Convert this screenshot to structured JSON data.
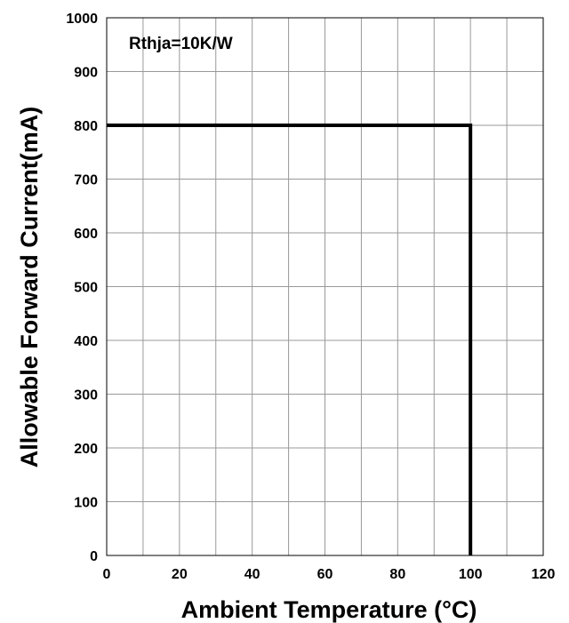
{
  "chart_data": {
    "type": "line",
    "title": "",
    "xlabel": "Ambient Temperature (°C)",
    "ylabel": "Allowable Forward Current(mA)",
    "xlim": [
      0,
      120
    ],
    "ylim": [
      0,
      1000
    ],
    "x_ticks": [
      0,
      10,
      20,
      30,
      40,
      50,
      60,
      70,
      80,
      90,
      100,
      110,
      120
    ],
    "x_tick_labels": [
      "0",
      "",
      "20",
      "",
      "40",
      "",
      "60",
      "",
      "80",
      "",
      "100",
      "",
      "120"
    ],
    "y_ticks": [
      0,
      100,
      200,
      300,
      400,
      500,
      600,
      700,
      800,
      900,
      1000
    ],
    "y_tick_labels": [
      "0",
      "100",
      "200",
      "300",
      "400",
      "500",
      "600",
      "700",
      "800",
      "900",
      "1000"
    ],
    "grid": true,
    "annotation": "Rthja=10K/W",
    "series": [
      {
        "x": [
          0,
          100,
          100
        ],
        "y": [
          800,
          800,
          0
        ],
        "color": "#000000"
      }
    ]
  }
}
